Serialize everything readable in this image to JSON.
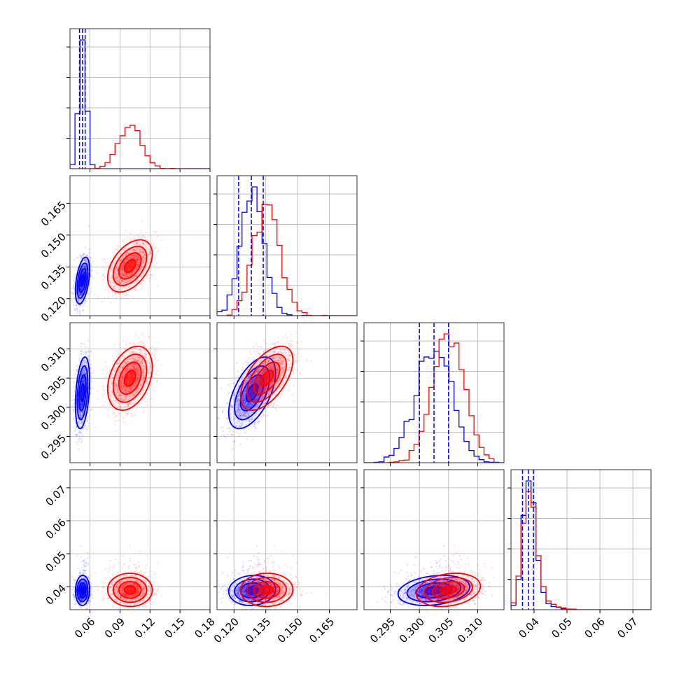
{
  "chart_data": {
    "type": "corner",
    "grid": true,
    "parameters": [
      {
        "range": [
          0.04,
          0.18
        ],
        "ticks": [
          0.06,
          0.09,
          0.12,
          0.15,
          0.18
        ],
        "tick_labels": [
          "0.06",
          "0.09",
          "0.12",
          "0.15",
          "0.18"
        ]
      },
      {
        "range": [
          0.112,
          0.178
        ],
        "ticks": [
          0.12,
          0.135,
          0.15,
          0.165
        ],
        "tick_labels": [
          "0.120",
          "0.135",
          "0.150",
          "0.165"
        ]
      },
      {
        "range": [
          0.2905,
          0.3145
        ],
        "ticks": [
          0.295,
          0.3,
          0.305,
          0.31
        ],
        "tick_labels": [
          "0.295",
          "0.300",
          "0.305",
          "0.310"
        ]
      },
      {
        "range": [
          0.033,
          0.0755
        ],
        "ticks": [
          0.04,
          0.05,
          0.06,
          0.07
        ],
        "tick_labels": [
          "0.04",
          "0.05",
          "0.06",
          "0.07"
        ]
      }
    ],
    "series": [
      {
        "color": "#0000ff",
        "mean": [
          0.0525,
          0.1285,
          0.3025,
          0.0385
        ],
        "std": [
          0.0035,
          0.0055,
          0.003,
          0.0018
        ],
        "quantiles": [
          [
            0.0495,
            0.0525,
            0.0552
          ],
          [
            0.1222,
            0.1282,
            0.1338
          ],
          [
            0.3,
            0.3025,
            0.305
          ],
          [
            0.0365,
            0.0383,
            0.0398
          ]
        ]
      },
      {
        "color": "#ff0000",
        "mean": [
          0.0985,
          0.1355,
          0.305,
          0.0385
        ],
        "std": [
          0.011,
          0.006,
          0.0027,
          0.002
        ],
        "quantiles": []
      }
    ]
  }
}
